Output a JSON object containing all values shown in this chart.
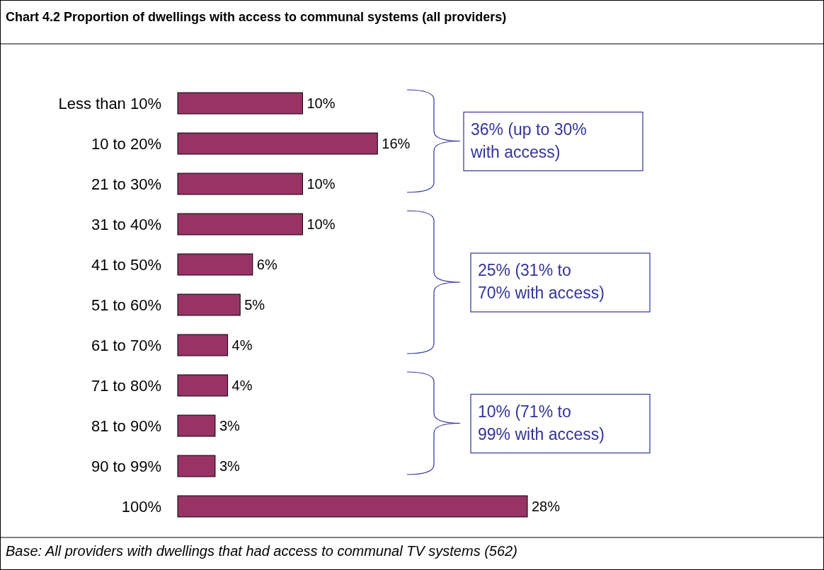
{
  "chart_data": {
    "type": "bar",
    "orientation": "horizontal",
    "title": "Chart 4.2 Proportion of dwellings with access to communal systems (all providers)",
    "categories": [
      "Less than 10%",
      "10 to 20%",
      "21 to 30%",
      "31 to 40%",
      "41 to 50%",
      "51 to 60%",
      "61 to 70%",
      "71 to 80%",
      "81 to 90%",
      "90 to 99%",
      "100%"
    ],
    "values": [
      10,
      16,
      10,
      10,
      6,
      5,
      4,
      4,
      3,
      3,
      28
    ],
    "value_labels": [
      "10%",
      "16%",
      "10%",
      "10%",
      "6%",
      "5%",
      "4%",
      "4%",
      "3%",
      "3%",
      "28%"
    ],
    "color": "#993366",
    "annotations": [
      "36% (up to 30% with access)",
      "25% (31% to 70% with access)",
      "10% (71% to 99% with access)",
      "Base: All providers with dwellings that had access to communal TV systems (562)"
    ]
  }
}
